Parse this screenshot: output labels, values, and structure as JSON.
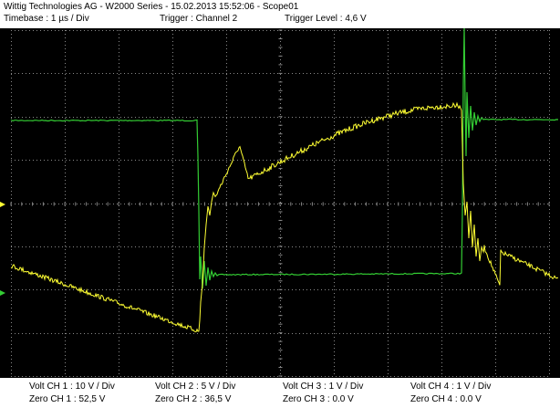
{
  "header": {
    "title": "Wittig Technologies AG - W2000 Series  -  15.02.2013 15:52:06 - Scope01",
    "timebase": "Timebase : 1 µs / Div",
    "trigger": "Trigger : Channel 2",
    "trigger_level": "Trigger Level : 4,6 V"
  },
  "colors": {
    "background": "#000000",
    "grid": "#8a8a8a",
    "channel1": "#ffff33",
    "channel2": "#33cc33"
  },
  "footer": {
    "ch1_volt": "Volt CH 1 : 10 V / Div",
    "ch1_zero": "Zero CH 1 : 52,5 V",
    "ch2_volt": "Volt CH 2 : 5 V / Div",
    "ch2_zero": "Zero CH 2 : 36,5 V",
    "ch3_volt": "Volt CH 3 : 1 V / Div",
    "ch3_zero": "Zero CH 3 : 0.0 V",
    "ch4_volt": "Volt CH 4 : 1 V / Div",
    "ch4_zero": "Zero CH 4 : 0.0 V"
  }
}
